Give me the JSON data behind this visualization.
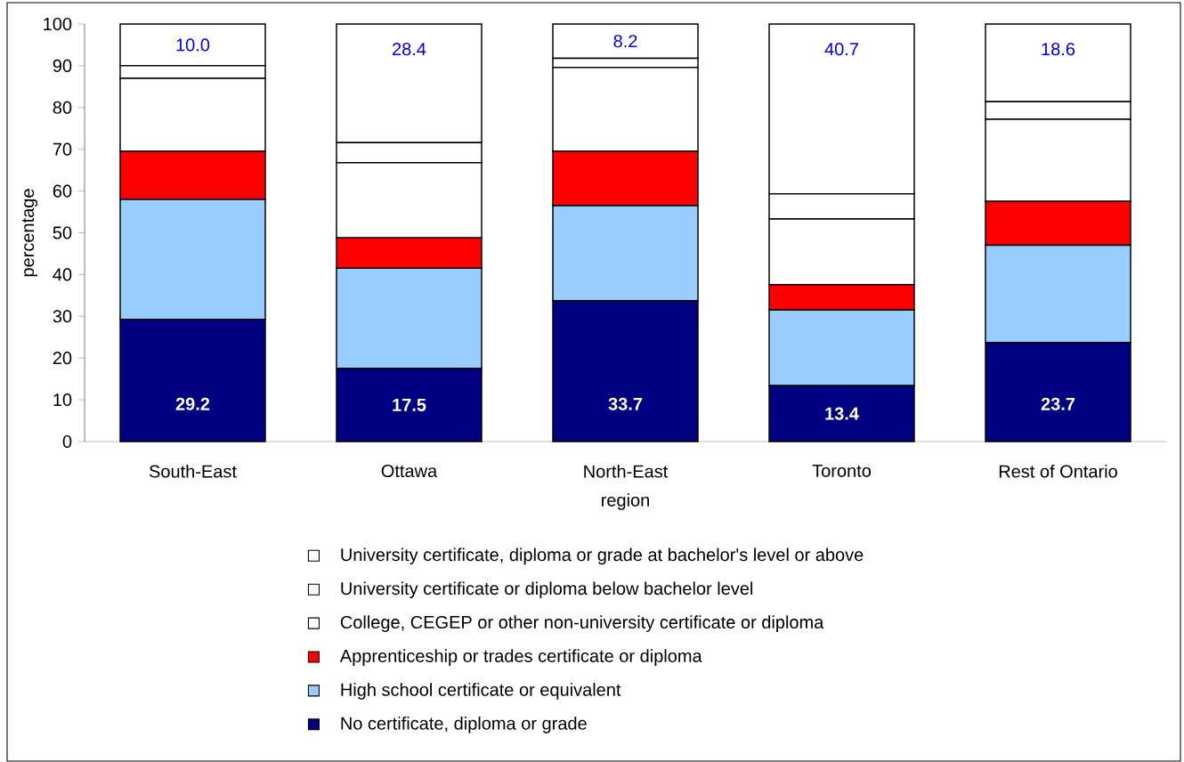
{
  "chart_data": {
    "type": "bar",
    "stacked": true,
    "xlabel": "region",
    "ylabel": "percentage",
    "categories": [
      "South-East",
      "Ottawa",
      "North-East",
      "Toronto",
      "Rest of Ontario"
    ],
    "ylim": [
      0,
      100
    ],
    "yticks": [
      0,
      10,
      20,
      30,
      40,
      50,
      60,
      70,
      80,
      90,
      100
    ],
    "grid": false,
    "legend": "bottom",
    "series": [
      {
        "name": "No certificate, diploma or grade",
        "color": "#000080",
        "values": [
          29.2,
          17.5,
          33.7,
          13.4,
          23.7
        ],
        "value_labels": [
          "29.2",
          "17.5",
          "33.7",
          "13.4",
          "23.7"
        ]
      },
      {
        "name": "High school certificate or equivalent",
        "color": "#99ccff",
        "values": [
          28.8,
          24.0,
          22.8,
          18.1,
          23.3
        ]
      },
      {
        "name": "Apprenticeship or trades certificate or diploma",
        "color": "#ff0000",
        "values": [
          11.5,
          7.3,
          13.0,
          6.1,
          10.5
        ]
      },
      {
        "name": "College, CEGEP or other non-university certificate or diploma",
        "color": "#ffffff",
        "values": [
          17.5,
          18.0,
          20.1,
          15.7,
          19.7
        ]
      },
      {
        "name": "University certificate or diploma below bachelor level",
        "color": "#ffffff",
        "values": [
          3.0,
          4.8,
          2.2,
          6.0,
          4.2
        ]
      },
      {
        "name": "University certificate, diploma or grade at bachelor's level or above",
        "color": "#ffffff",
        "values": [
          10.0,
          28.4,
          8.2,
          40.7,
          18.6
        ],
        "value_labels": [
          "10.0",
          "28.4",
          "8.2",
          "40.7",
          "18.6"
        ]
      }
    ]
  }
}
